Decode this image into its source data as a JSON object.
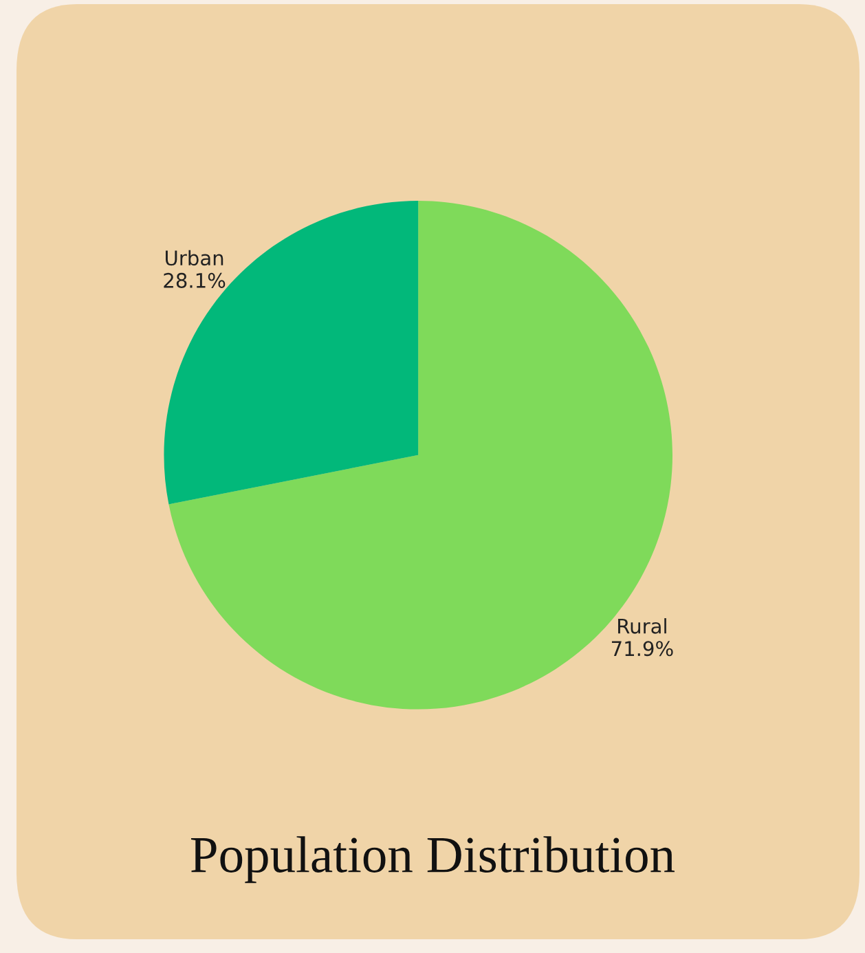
{
  "chart_data": {
    "type": "pie",
    "title": "Population Distribution",
    "categories": [
      "Rural",
      "Urban"
    ],
    "values": [
      71.9,
      28.1
    ],
    "value_labels": [
      "71.9%",
      "28.1%"
    ],
    "colors": [
      "#7fda5a",
      "#02b87a"
    ]
  }
}
